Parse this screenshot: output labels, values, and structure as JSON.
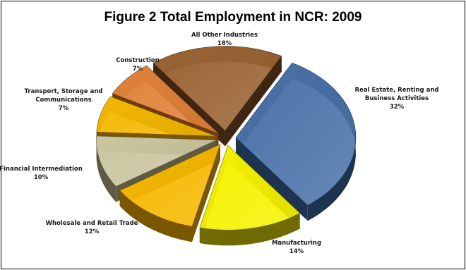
{
  "colors": {
    "real_estate": "#4a72a8",
    "manufacturing": "#f5f200",
    "wholesale": "#f6b800",
    "financial": "#cbc6a0",
    "transport": "#f4b800",
    "construction": "#e0823a",
    "other": "#9a6434"
  },
  "chart_data": {
    "type": "pie",
    "title": "Figure 2 Total Employment in NCR: 2009",
    "slices": [
      {
        "key": "real_estate",
        "label_lines": [
          "Real Estate, Renting and",
          "Business Activities"
        ],
        "value": 32,
        "pct_label": "32%",
        "color": "#4a72a8",
        "side": "#1e3350"
      },
      {
        "key": "manufacturing",
        "label_lines": [
          "Manufacturing"
        ],
        "value": 14,
        "pct_label": "14%",
        "color": "#f5f200",
        "side": "#6f6b00"
      },
      {
        "key": "wholesale",
        "label_lines": [
          "Wholesale and Retail Trade"
        ],
        "value": 12,
        "pct_label": "12%",
        "color": "#f6b800",
        "side": "#7a5600"
      },
      {
        "key": "financial",
        "label_lines": [
          "Financial Intermediation"
        ],
        "value": 10,
        "pct_label": "10%",
        "color": "#cbc6a0",
        "side": "#5e5a44"
      },
      {
        "key": "transport",
        "label_lines": [
          "Transport, Storage and",
          "Communications"
        ],
        "value": 7,
        "pct_label": "7%",
        "color": "#f4b800",
        "side": "#7a5600"
      },
      {
        "key": "construction",
        "label_lines": [
          "Construction"
        ],
        "value": 7,
        "pct_label": "7%",
        "color": "#e0823a",
        "side": "#6e3a14"
      },
      {
        "key": "other",
        "label_lines": [
          "All Other Industries"
        ],
        "value": 18,
        "pct_label": "18%",
        "color": "#9a6434",
        "side": "#3e2610"
      }
    ],
    "legend": "none",
    "style": "exploded 3D pie"
  }
}
